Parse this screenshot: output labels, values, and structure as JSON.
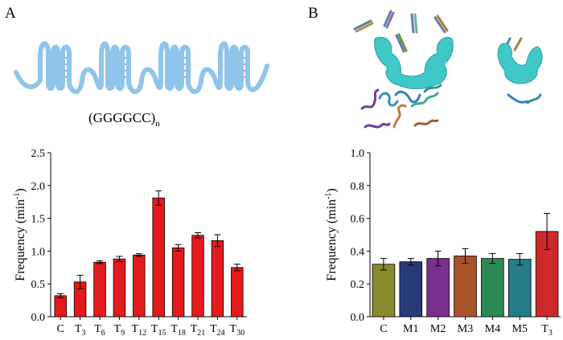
{
  "panel_a": {
    "label": "A",
    "formula": {
      "main": "(GGGGCC)",
      "sub": "n"
    }
  },
  "panel_b": {
    "label": "B"
  },
  "colors": {
    "strand": "#8fc5ea",
    "rung": "#9b7bb8",
    "protein": "#40c8c8",
    "bar_red": "#e41a1c"
  },
  "chart_data": [
    {
      "type": "bar",
      "panel": "A",
      "ylabel": "Frequency (min",
      "ylabel_sup": "-1",
      "ylabel_close": ")",
      "ylim": [
        0,
        2.5
      ],
      "yticks": [
        "0.0",
        "0.5",
        "1.0",
        "1.5",
        "2.0",
        "2.5"
      ],
      "categories": [
        {
          "main": "C",
          "sub": ""
        },
        {
          "main": "T",
          "sub": "3"
        },
        {
          "main": "T",
          "sub": "6"
        },
        {
          "main": "T",
          "sub": "9"
        },
        {
          "main": "T",
          "sub": "12"
        },
        {
          "main": "T",
          "sub": "15"
        },
        {
          "main": "T",
          "sub": "18"
        },
        {
          "main": "T",
          "sub": "21"
        },
        {
          "main": "T",
          "sub": "24"
        },
        {
          "main": "T",
          "sub": "30"
        }
      ],
      "values": [
        0.32,
        0.53,
        0.83,
        0.88,
        0.94,
        1.81,
        1.05,
        1.24,
        1.16,
        0.75
      ],
      "errors": [
        0.03,
        0.1,
        0.02,
        0.04,
        0.02,
        0.11,
        0.05,
        0.04,
        0.09,
        0.05
      ],
      "colors": [
        "#e41a1c",
        "#e41a1c",
        "#e41a1c",
        "#e41a1c",
        "#e41a1c",
        "#e41a1c",
        "#e41a1c",
        "#e41a1c",
        "#e41a1c",
        "#e41a1c"
      ]
    },
    {
      "type": "bar",
      "panel": "B",
      "ylabel": "Frequency (min",
      "ylabel_sup": "-1",
      "ylabel_close": ")",
      "ylim": [
        0,
        1.0
      ],
      "yticks": [
        "0.0",
        "0.2",
        "0.4",
        "0.6",
        "0.8",
        "1.0"
      ],
      "categories": [
        {
          "main": "C",
          "sub": ""
        },
        {
          "main": "M1",
          "sub": ""
        },
        {
          "main": "M2",
          "sub": ""
        },
        {
          "main": "M3",
          "sub": ""
        },
        {
          "main": "M4",
          "sub": ""
        },
        {
          "main": "M5",
          "sub": ""
        },
        {
          "main": "T",
          "sub": "3"
        }
      ],
      "values": [
        0.32,
        0.335,
        0.355,
        0.37,
        0.355,
        0.35,
        0.52
      ],
      "errors": [
        0.035,
        0.02,
        0.045,
        0.045,
        0.03,
        0.035,
        0.11
      ],
      "colors": [
        "#8a8a2e",
        "#273a7a",
        "#7b2f8f",
        "#a9532a",
        "#2a8a52",
        "#247d88",
        "#cc2a2a"
      ]
    }
  ]
}
